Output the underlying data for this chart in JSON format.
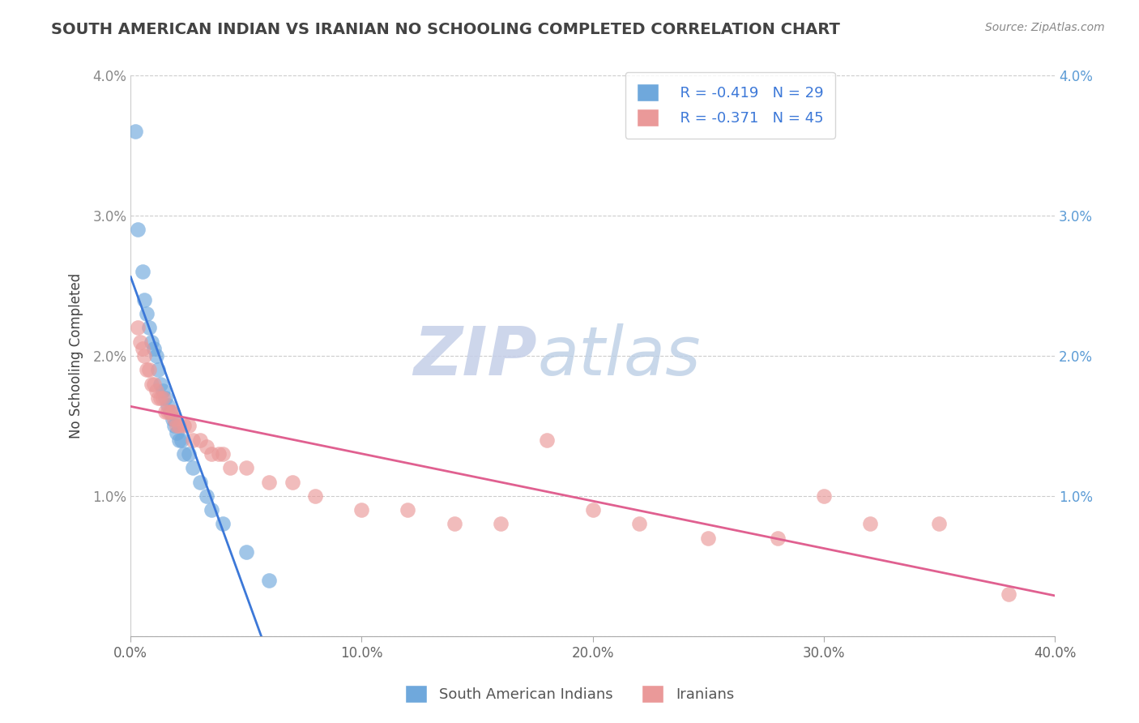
{
  "title": "SOUTH AMERICAN INDIAN VS IRANIAN NO SCHOOLING COMPLETED CORRELATION CHART",
  "source_text": "Source: ZipAtlas.com",
  "ylabel": "No Schooling Completed",
  "xlabel": "",
  "xlim": [
    0.0,
    0.4
  ],
  "ylim": [
    0.0,
    0.04
  ],
  "xtick_labels": [
    "0.0%",
    "10.0%",
    "20.0%",
    "30.0%",
    "40.0%"
  ],
  "xtick_vals": [
    0.0,
    0.1,
    0.2,
    0.3,
    0.4
  ],
  "ytick_labels": [
    "",
    "1.0%",
    "2.0%",
    "3.0%",
    "4.0%"
  ],
  "ytick_vals": [
    0.0,
    0.01,
    0.02,
    0.03,
    0.04
  ],
  "legend_r1": "R = -0.419",
  "legend_n1": "N = 29",
  "legend_r2": "R = -0.371",
  "legend_n2": "N = 45",
  "color_blue": "#6fa8dc",
  "color_pink": "#ea9999",
  "color_blue_line": "#3c78d8",
  "color_pink_line": "#e06090",
  "color_legend_text": "#3c78d8",
  "watermark_zip": "ZIP",
  "watermark_atlas": "atlas",
  "watermark_color_zip": "#c8d4ee",
  "watermark_color_atlas": "#b8cce4",
  "title_color": "#434343",
  "source_color": "#888888",
  "grid_color": "#cccccc",
  "sa_indians_x": [
    0.002,
    0.003,
    0.005,
    0.006,
    0.007,
    0.008,
    0.009,
    0.01,
    0.011,
    0.012,
    0.013,
    0.014,
    0.015,
    0.016,
    0.017,
    0.018,
    0.019,
    0.02,
    0.021,
    0.022,
    0.023,
    0.025,
    0.027,
    0.03,
    0.033,
    0.035,
    0.04,
    0.05,
    0.06
  ],
  "sa_indians_y": [
    0.036,
    0.029,
    0.026,
    0.024,
    0.023,
    0.022,
    0.021,
    0.0205,
    0.02,
    0.019,
    0.018,
    0.0175,
    0.017,
    0.0165,
    0.016,
    0.0155,
    0.015,
    0.0145,
    0.014,
    0.014,
    0.013,
    0.013,
    0.012,
    0.011,
    0.01,
    0.009,
    0.008,
    0.006,
    0.004
  ],
  "iranians_x": [
    0.003,
    0.004,
    0.005,
    0.006,
    0.007,
    0.008,
    0.009,
    0.01,
    0.011,
    0.012,
    0.013,
    0.014,
    0.015,
    0.016,
    0.017,
    0.018,
    0.019,
    0.02,
    0.021,
    0.023,
    0.025,
    0.027,
    0.03,
    0.033,
    0.035,
    0.038,
    0.04,
    0.043,
    0.05,
    0.06,
    0.07,
    0.08,
    0.1,
    0.12,
    0.14,
    0.16,
    0.18,
    0.2,
    0.22,
    0.25,
    0.28,
    0.3,
    0.32,
    0.35,
    0.38
  ],
  "iranians_y": [
    0.022,
    0.021,
    0.0205,
    0.02,
    0.019,
    0.019,
    0.018,
    0.018,
    0.0175,
    0.017,
    0.017,
    0.017,
    0.016,
    0.016,
    0.016,
    0.016,
    0.0155,
    0.015,
    0.015,
    0.015,
    0.015,
    0.014,
    0.014,
    0.0135,
    0.013,
    0.013,
    0.013,
    0.012,
    0.012,
    0.011,
    0.011,
    0.01,
    0.009,
    0.009,
    0.008,
    0.008,
    0.014,
    0.009,
    0.008,
    0.007,
    0.007,
    0.01,
    0.008,
    0.008,
    0.003
  ]
}
